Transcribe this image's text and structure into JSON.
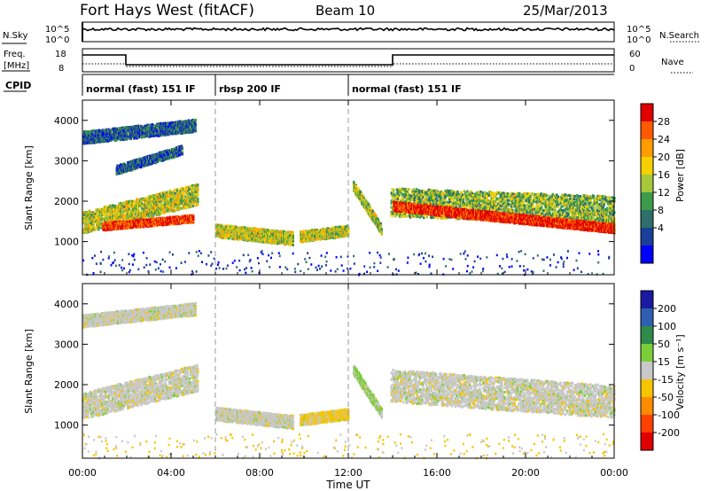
{
  "header": {
    "title": "Fort Hays West (fitACF)",
    "beam": "Beam 10",
    "date": "25/Mar/2013"
  },
  "top_panels": {
    "nsky_label": "N.Sky",
    "nsky_ticks": [
      "10^5",
      "10^0"
    ],
    "nsearch_label": "N.Search",
    "nsearch_ticks": [
      "10^5",
      "10^0"
    ],
    "freq_label_1": "Freq.",
    "freq_label_2": "[MHz]",
    "freq_ticks": [
      "18",
      "8"
    ],
    "nave_label": "Nave",
    "nave_ticks": [
      "60",
      "0"
    ],
    "cpid_label": "CPID"
  },
  "cpid_segments": [
    {
      "label": "normal (fast) 151 IF",
      "start": 0,
      "end": 6
    },
    {
      "label": "rbsp 200 IF",
      "start": 6,
      "end": 12
    },
    {
      "label": "normal (fast) 151 IF",
      "start": 12,
      "end": 24
    }
  ],
  "power_scale": {
    "label": "Power [dB]",
    "ticks": [
      "28",
      "24",
      "20",
      "16",
      "12",
      "8",
      "4"
    ],
    "colors": [
      "#e00000",
      "#ff5a00",
      "#ff9c00",
      "#f7d000",
      "#a6c83a",
      "#3c9a4a",
      "#2e6f6a",
      "#1a3f9a",
      "#0000ff"
    ]
  },
  "velocity_scale": {
    "label": "Velocity [m s⁻¹]",
    "ticks": [
      "200",
      "100",
      "50",
      "15",
      "-15",
      "-50",
      "-100",
      "-200"
    ],
    "colors": [
      "#1a1aa0",
      "#2f5fb0",
      "#2e8a4a",
      "#7ccd3a",
      "#c8c8c8",
      "#f7c400",
      "#ff8c00",
      "#ff4000",
      "#e00000"
    ]
  },
  "chart_data": [
    {
      "type": "heatmap",
      "title": "",
      "xlabel": "Time UT",
      "ylabel": "Slant Range [km]",
      "x_ticks": [
        "00:00",
        "04:00",
        "08:00",
        "12:00",
        "16:00",
        "20:00",
        "00:00"
      ],
      "y_ticks": [
        "1000",
        "2000",
        "3000",
        "4000"
      ],
      "xlim_hours": [
        0,
        24
      ],
      "ylim": [
        180,
        4500
      ],
      "colorbar": "Power [dB]",
      "echo_bands": [
        {
          "t0": 0.0,
          "t1": 5.2,
          "r_start": 1500,
          "r_end": 2200,
          "width": 520,
          "level": 0.55
        },
        {
          "t0": 0.9,
          "t1": 5.0,
          "r_start": 1400,
          "r_end": 1600,
          "width": 180,
          "level": 0.95
        },
        {
          "t0": 0.0,
          "t1": 5.1,
          "r_start": 3600,
          "r_end": 3900,
          "width": 300,
          "level": 0.2
        },
        {
          "t0": 1.5,
          "t1": 4.5,
          "r_start": 2800,
          "r_end": 3300,
          "width": 220,
          "level": 0.2
        },
        {
          "t0": 6.0,
          "t1": 9.5,
          "r_start": 1300,
          "r_end": 1100,
          "width": 320,
          "level": 0.55
        },
        {
          "t0": 9.8,
          "t1": 12.0,
          "r_start": 1150,
          "r_end": 1300,
          "width": 260,
          "level": 0.55
        },
        {
          "t0": 12.2,
          "t1": 13.5,
          "r_start": 2400,
          "r_end": 1300,
          "width": 240,
          "level": 0.5
        },
        {
          "t0": 13.9,
          "t1": 24.0,
          "r_start": 2000,
          "r_end": 1800,
          "width": 700,
          "level": 0.45
        },
        {
          "t0": 14.0,
          "t1": 24.0,
          "r_start": 1900,
          "r_end": 1350,
          "width": 220,
          "level": 1.0
        }
      ]
    },
    {
      "type": "heatmap",
      "title": "",
      "xlabel": "Time UT",
      "ylabel": "Slant Range [km]",
      "x_ticks": [
        "00:00",
        "04:00",
        "08:00",
        "12:00",
        "16:00",
        "20:00",
        "00:00"
      ],
      "y_ticks": [
        "1000",
        "2000",
        "3000",
        "4000"
      ],
      "xlim_hours": [
        0,
        24
      ],
      "ylim": [
        180,
        4500
      ],
      "colorbar": "Velocity [m s⁻¹]",
      "echo_bands": [
        {
          "t0": 0.0,
          "t1": 5.2,
          "r_start": 1500,
          "r_end": 2200,
          "width": 650,
          "level": 0.45
        },
        {
          "t0": 0.0,
          "t1": 5.1,
          "r_start": 3600,
          "r_end": 3900,
          "width": 300,
          "level": 0.45
        },
        {
          "t0": 6.0,
          "t1": 9.5,
          "r_start": 1300,
          "r_end": 1100,
          "width": 320,
          "level": 0.45
        },
        {
          "t0": 9.8,
          "t1": 12.0,
          "r_start": 1150,
          "r_end": 1300,
          "width": 260,
          "level": 0.6
        },
        {
          "t0": 12.2,
          "t1": 13.5,
          "r_start": 2400,
          "r_end": 1300,
          "width": 240,
          "level": 0.3
        },
        {
          "t0": 13.9,
          "t1": 24.0,
          "r_start": 2000,
          "r_end": 1600,
          "width": 800,
          "level": 0.45
        }
      ]
    }
  ]
}
